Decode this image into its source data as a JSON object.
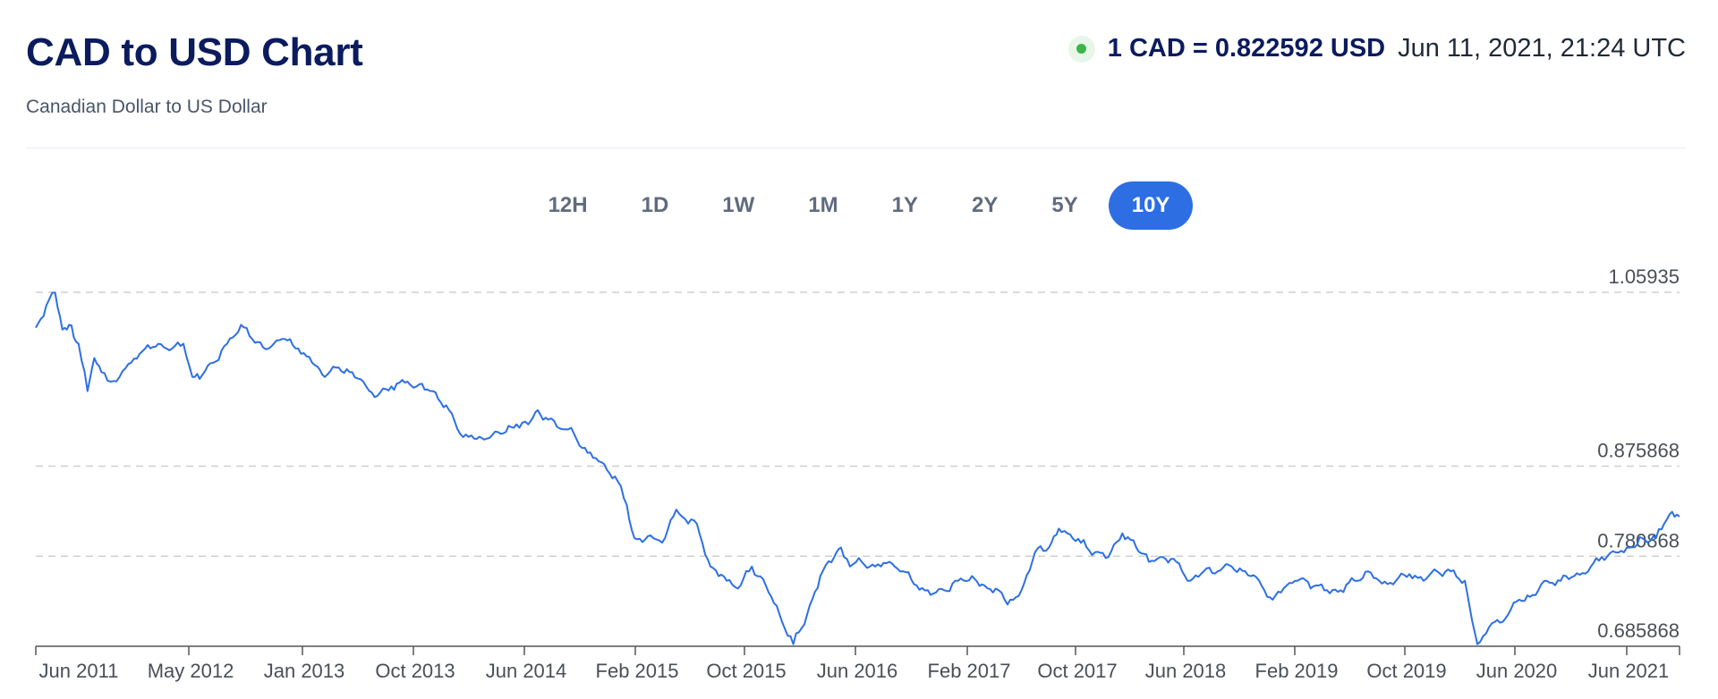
{
  "header": {
    "title": "CAD to USD Chart",
    "subtitle": "Canadian Dollar to US Dollar",
    "rate": "1 CAD = 0.822592 USD",
    "timestamp": "Jun 11, 2021, 21:24 UTC",
    "live_indicator_color": "#3cb54a"
  },
  "tabs": [
    {
      "label": "12H",
      "active": false
    },
    {
      "label": "1D",
      "active": false
    },
    {
      "label": "1W",
      "active": false
    },
    {
      "label": "1M",
      "active": false
    },
    {
      "label": "1Y",
      "active": false
    },
    {
      "label": "2Y",
      "active": false
    },
    {
      "label": "5Y",
      "active": false
    },
    {
      "label": "10Y",
      "active": true
    }
  ],
  "colors": {
    "line": "#2d6fe3",
    "accent": "#2d6fe3",
    "title": "#0b1b5e",
    "gridline": "#cfcfcf"
  },
  "chart_data": {
    "type": "line",
    "title": "CAD to USD Chart",
    "subtitle": "Canadian Dollar to US Dollar",
    "xlabel": "",
    "ylabel": "",
    "grid": "dashed horizontal at labeled values",
    "x_tick_labels": [
      "Jun 2011",
      "May 2012",
      "Jan 2013",
      "Oct 2013",
      "Jun 2014",
      "Feb 2015",
      "Oct 2015",
      "Jun 2016",
      "Feb 2017",
      "Oct 2017",
      "Jun 2018",
      "Feb 2019",
      "Oct 2019",
      "Jun 2020",
      "Jun 2021"
    ],
    "y_tick_labels": [
      "1.05935",
      "0.875868",
      "0.780868",
      "0.685868"
    ],
    "y_tick_values": [
      1.05935,
      0.875868,
      0.780868,
      0.685868
    ],
    "ylim": [
      0.685868,
      1.05935
    ],
    "xlim": [
      "2011-06-12",
      "2021-06-11"
    ],
    "series": [
      {
        "values": [
          [
            "2011-06-12",
            1.022
          ],
          [
            "2011-07-05",
            1.045
          ],
          [
            "2011-07-25",
            1.059
          ],
          [
            "2011-08-10",
            1.02
          ],
          [
            "2011-08-25",
            1.025
          ],
          [
            "2011-09-15",
            1.005
          ],
          [
            "2011-10-05",
            0.955
          ],
          [
            "2011-10-20",
            0.99
          ],
          [
            "2011-11-05",
            0.975
          ],
          [
            "2011-11-25",
            0.965
          ],
          [
            "2011-12-15",
            0.97
          ],
          [
            "2012-01-10",
            0.985
          ],
          [
            "2012-02-10",
            1.0
          ],
          [
            "2012-03-10",
            1.005
          ],
          [
            "2012-04-10",
            1.0
          ],
          [
            "2012-05-05",
            1.005
          ],
          [
            "2012-05-25",
            0.97
          ],
          [
            "2012-06-10",
            0.968
          ],
          [
            "2012-07-10",
            0.985
          ],
          [
            "2012-08-10",
            1.005
          ],
          [
            "2012-09-10",
            1.025
          ],
          [
            "2012-10-05",
            1.01
          ],
          [
            "2012-11-10",
            1.0
          ],
          [
            "2012-12-10",
            1.01
          ],
          [
            "2013-01-15",
            1.0
          ],
          [
            "2013-02-15",
            0.985
          ],
          [
            "2013-03-15",
            0.97
          ],
          [
            "2013-04-15",
            0.98
          ],
          [
            "2013-05-15",
            0.975
          ],
          [
            "2013-06-15",
            0.96
          ],
          [
            "2013-07-10",
            0.95
          ],
          [
            "2013-08-10",
            0.96
          ],
          [
            "2013-09-15",
            0.965
          ],
          [
            "2013-10-05",
            0.96
          ],
          [
            "2013-11-10",
            0.955
          ],
          [
            "2013-12-10",
            0.94
          ],
          [
            "2014-01-10",
            0.91
          ],
          [
            "2014-02-10",
            0.905
          ],
          [
            "2014-03-10",
            0.905
          ],
          [
            "2014-04-10",
            0.91
          ],
          [
            "2014-05-15",
            0.92
          ],
          [
            "2014-06-10",
            0.92
          ],
          [
            "2014-07-01",
            0.935
          ],
          [
            "2014-07-25",
            0.925
          ],
          [
            "2014-08-25",
            0.915
          ],
          [
            "2014-09-20",
            0.91
          ],
          [
            "2014-10-20",
            0.89
          ],
          [
            "2014-11-20",
            0.88
          ],
          [
            "2014-12-20",
            0.865
          ],
          [
            "2015-01-15",
            0.835
          ],
          [
            "2015-02-01",
            0.8
          ],
          [
            "2015-03-15",
            0.8
          ],
          [
            "2015-04-10",
            0.8
          ],
          [
            "2015-05-05",
            0.83
          ],
          [
            "2015-05-25",
            0.82
          ],
          [
            "2015-06-20",
            0.815
          ],
          [
            "2015-07-20",
            0.77
          ],
          [
            "2015-08-25",
            0.755
          ],
          [
            "2015-09-25",
            0.75
          ],
          [
            "2015-10-20",
            0.77
          ],
          [
            "2015-11-20",
            0.75
          ],
          [
            "2015-12-20",
            0.72
          ],
          [
            "2016-01-20",
            0.688
          ],
          [
            "2016-02-20",
            0.72
          ],
          [
            "2016-03-20",
            0.76
          ],
          [
            "2016-04-20",
            0.78
          ],
          [
            "2016-05-05",
            0.79
          ],
          [
            "2016-05-25",
            0.77
          ],
          [
            "2016-06-20",
            0.775
          ],
          [
            "2016-07-20",
            0.77
          ],
          [
            "2016-08-20",
            0.775
          ],
          [
            "2016-09-20",
            0.765
          ],
          [
            "2016-10-20",
            0.75
          ],
          [
            "2016-11-20",
            0.74
          ],
          [
            "2016-12-20",
            0.745
          ],
          [
            "2017-01-20",
            0.755
          ],
          [
            "2017-02-20",
            0.76
          ],
          [
            "2017-03-20",
            0.75
          ],
          [
            "2017-04-20",
            0.745
          ],
          [
            "2017-05-10",
            0.73
          ],
          [
            "2017-06-10",
            0.745
          ],
          [
            "2017-07-10",
            0.785
          ],
          [
            "2017-08-10",
            0.79
          ],
          [
            "2017-09-01",
            0.81
          ],
          [
            "2017-09-20",
            0.805
          ],
          [
            "2017-10-20",
            0.795
          ],
          [
            "2017-11-20",
            0.785
          ],
          [
            "2017-12-20",
            0.78
          ],
          [
            "2018-01-20",
            0.805
          ],
          [
            "2018-02-20",
            0.79
          ],
          [
            "2018-03-20",
            0.775
          ],
          [
            "2018-04-20",
            0.78
          ],
          [
            "2018-05-20",
            0.775
          ],
          [
            "2018-06-20",
            0.755
          ],
          [
            "2018-07-20",
            0.765
          ],
          [
            "2018-08-20",
            0.765
          ],
          [
            "2018-09-20",
            0.77
          ],
          [
            "2018-10-20",
            0.765
          ],
          [
            "2018-11-20",
            0.755
          ],
          [
            "2018-12-20",
            0.735
          ],
          [
            "2019-01-20",
            0.75
          ],
          [
            "2019-02-20",
            0.757
          ],
          [
            "2019-03-20",
            0.749
          ],
          [
            "2019-04-20",
            0.745
          ],
          [
            "2019-05-20",
            0.745
          ],
          [
            "2019-06-20",
            0.755
          ],
          [
            "2019-07-20",
            0.765
          ],
          [
            "2019-08-20",
            0.752
          ],
          [
            "2019-09-20",
            0.755
          ],
          [
            "2019-10-20",
            0.762
          ],
          [
            "2019-11-20",
            0.755
          ],
          [
            "2019-12-20",
            0.765
          ],
          [
            "2020-01-20",
            0.765
          ],
          [
            "2020-02-20",
            0.755
          ],
          [
            "2020-03-19",
            0.688
          ],
          [
            "2020-04-20",
            0.71
          ],
          [
            "2020-05-20",
            0.715
          ],
          [
            "2020-06-20",
            0.735
          ],
          [
            "2020-07-20",
            0.74
          ],
          [
            "2020-08-20",
            0.755
          ],
          [
            "2020-09-20",
            0.755
          ],
          [
            "2020-10-20",
            0.76
          ],
          [
            "2020-11-20",
            0.765
          ],
          [
            "2020-12-20",
            0.78
          ],
          [
            "2021-01-20",
            0.785
          ],
          [
            "2021-02-20",
            0.79
          ],
          [
            "2021-03-20",
            0.8
          ],
          [
            "2021-04-20",
            0.8
          ],
          [
            "2021-05-20",
            0.825
          ],
          [
            "2021-06-11",
            0.822592
          ]
        ]
      }
    ]
  }
}
